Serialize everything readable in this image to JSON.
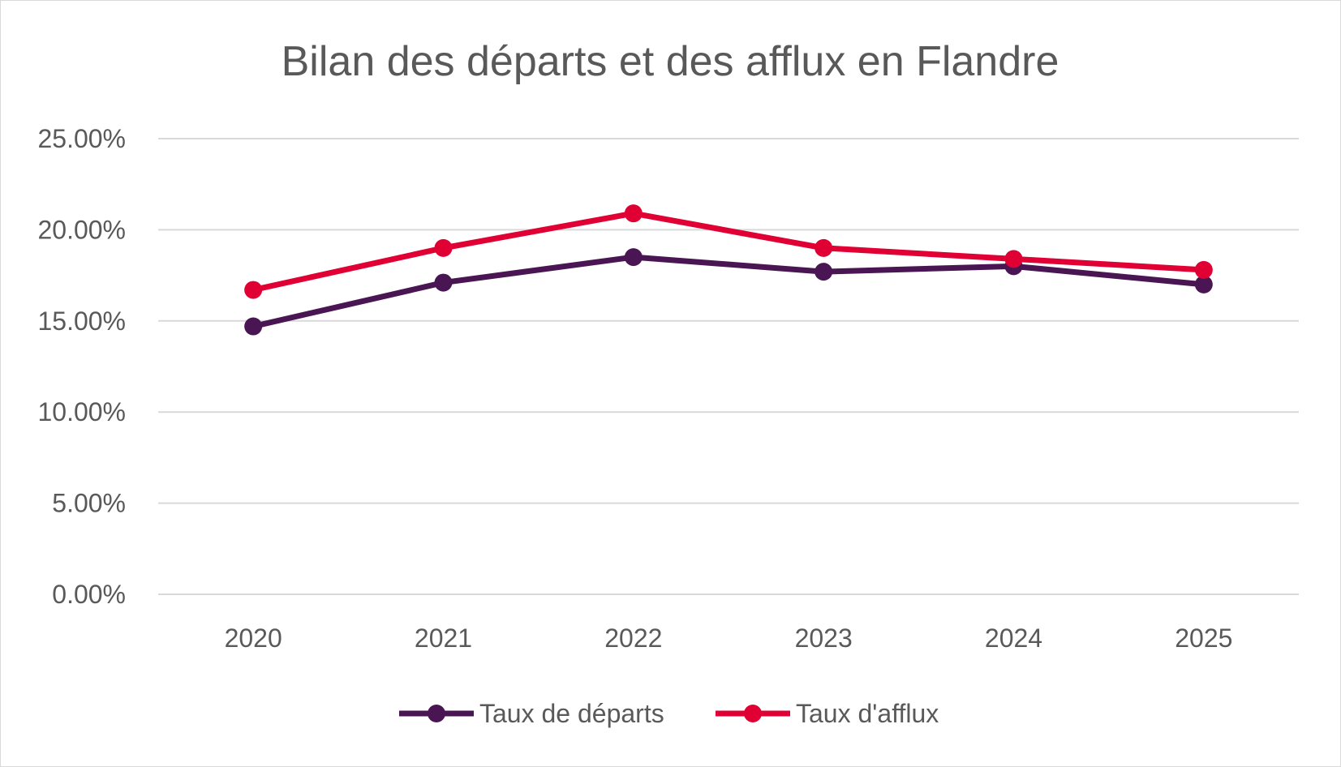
{
  "chart_data": {
    "type": "line",
    "title": "Bilan des départs et des afflux en Flandre",
    "xlabel": "",
    "ylabel": "",
    "categories": [
      "2020",
      "2021",
      "2022",
      "2023",
      "2024",
      "2025"
    ],
    "ylim": [
      0,
      25
    ],
    "yticks": [
      0,
      5,
      10,
      15,
      20,
      25
    ],
    "ytick_labels": [
      "0.00%",
      "5.00%",
      "10.00%",
      "15.00%",
      "20.00%",
      "25.00%"
    ],
    "grid": true,
    "legend_position": "bottom",
    "series": [
      {
        "name": "Taux de départs",
        "color": "#4A1553",
        "values": [
          14.7,
          17.1,
          18.5,
          17.7,
          18.0,
          17.0
        ]
      },
      {
        "name": "Taux d'afflux",
        "color": "#E00034",
        "values": [
          16.7,
          19.0,
          20.9,
          19.0,
          18.4,
          17.8
        ]
      }
    ]
  }
}
